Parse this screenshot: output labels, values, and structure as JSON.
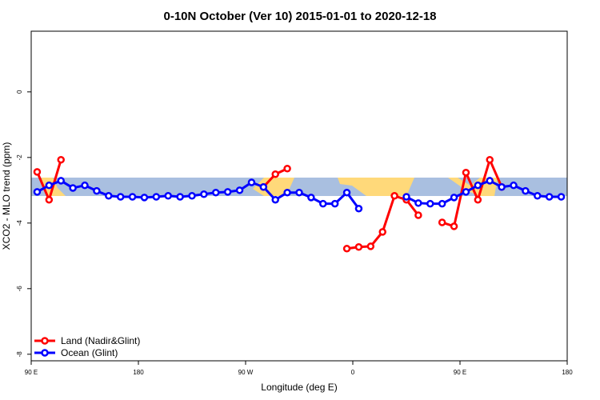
{
  "chart_data": {
    "type": "line",
    "title": "0-10N October (Ver 10)   2015-01-01 to 2020-12-18",
    "x_label": "Longitude (deg E)",
    "y_label": "XCO2 - MLO trend (ppm)",
    "x": [
      95,
      105,
      115,
      125,
      135,
      145,
      155,
      165,
      175,
      185,
      195,
      205,
      215,
      225,
      235,
      245,
      255,
      265,
      275,
      285,
      295,
      305,
      315,
      325,
      335,
      345,
      355,
      365,
      375,
      385,
      395,
      405,
      415,
      425,
      435,
      445,
      455,
      465,
      475,
      485,
      495,
      505,
      515,
      525,
      535
    ],
    "series": [
      {
        "name": "Land (Nadir&Glint)",
        "color": "#ff0000",
        "values": [
          -2.44,
          -3.29,
          -2.07,
          null,
          null,
          null,
          null,
          null,
          null,
          null,
          null,
          null,
          null,
          null,
          null,
          null,
          null,
          null,
          null,
          -2.9,
          -2.51,
          -2.34,
          null,
          null,
          null,
          null,
          -4.78,
          -4.73,
          -4.71,
          -4.27,
          -3.17,
          -3.29,
          -3.76,
          null,
          -3.98,
          -4.1,
          -2.46,
          -3.29,
          -2.07,
          -2.9,
          null,
          null,
          null,
          null,
          null
        ]
      },
      {
        "name": "Ocean (Glint)",
        "color": "#0000ff",
        "values": [
          -3.05,
          -2.85,
          -2.71,
          -2.93,
          -2.85,
          -3.02,
          -3.17,
          -3.2,
          -3.2,
          -3.22,
          -3.2,
          -3.17,
          -3.2,
          -3.17,
          -3.12,
          -3.07,
          -3.05,
          -3.0,
          -2.76,
          -2.9,
          -3.29,
          -3.07,
          -3.07,
          -3.22,
          -3.41,
          -3.41,
          -3.07,
          -3.56,
          null,
          null,
          null,
          -3.2,
          -3.39,
          -3.41,
          -3.41,
          -3.22,
          -3.05,
          -2.85,
          -2.71,
          -2.9,
          -2.85,
          -3.02,
          -3.17,
          -3.2,
          -3.2
        ]
      }
    ],
    "xlim": [
      90,
      540
    ],
    "xticks": [
      {
        "value": 90,
        "label": "90 E"
      },
      180,
      {
        "value": 270,
        "label": "90 W"
      },
      {
        "value": 360,
        "label": "0"
      },
      {
        "value": 450,
        "label": "90 E"
      },
      {
        "value": 540,
        "label": "180"
      }
    ],
    "ylim": [
      -8.2,
      1.85
    ],
    "yticks": [
      -8,
      -6,
      -4,
      -2,
      0
    ],
    "legend": "bottom-left"
  }
}
